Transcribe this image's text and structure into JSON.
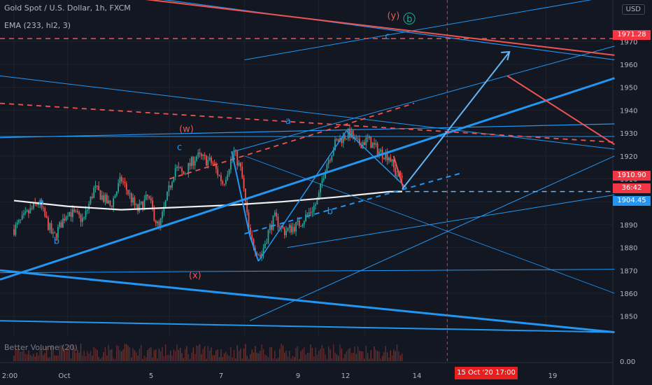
{
  "header": {
    "title": "Gold Spot / U.S. Dollar, 1h, FXCM",
    "indicator": "EMA (233, hl2, 3)",
    "volume_label": "Better Volume (20)",
    "currency": "USD"
  },
  "price_tags": {
    "target": "1971.28",
    "last": "1910.90",
    "countdown": "36:42",
    "ema": "1904.45"
  },
  "crosshair_time": "15 Oct '20  17:00",
  "wave_labels": [
    {
      "text": "a",
      "color": "#2196f3",
      "t": 2.3,
      "price": 1898.5
    },
    {
      "text": "b",
      "color": "#2196f3",
      "t": 3.7,
      "price": 1881.5
    },
    {
      "text": "c",
      "color": "#2196f3",
      "t": 15.2,
      "price": 1922.5
    },
    {
      "text": "(w)",
      "color": "#ef5350",
      "t": 15.4,
      "price": 1930.5
    },
    {
      "text": "(x)",
      "color": "#ef5350",
      "t": 16.3,
      "price": 1866.5
    },
    {
      "text": "a",
      "color": "#2196f3",
      "t": 25.3,
      "price": 1934.0
    },
    {
      "text": "b",
      "color": "#2196f3",
      "t": 29.2,
      "price": 1894.5
    },
    {
      "text": "c",
      "color": "#2196f3",
      "t": 34.6,
      "price": 1971.0
    },
    {
      "text": "(y)",
      "color": "#ef5350",
      "t": 34.8,
      "price": 1980.0
    },
    {
      "text": "b",
      "color": "#26a69a",
      "t": 36.6,
      "price": 1978.5
    }
  ],
  "chart_data": {
    "type": "candlestick",
    "title": "Gold Spot / U.S. Dollar, 1h, FXCM",
    "x_ticks": [
      "2:00",
      "Oct",
      "5",
      "7",
      "9",
      "12",
      "14",
      "15 Oct '20  17:00",
      "19"
    ],
    "y_ticks": [
      1850,
      1860,
      1870,
      1880,
      1890,
      1900,
      1910,
      1920,
      1930,
      1940,
      1950,
      1960,
      1970
    ],
    "ylim": [
      1843,
      1986
    ],
    "volume_tick": "0.00",
    "price_path": [
      [
        0,
        1888
      ],
      [
        1.5,
        1896
      ],
      [
        2.3,
        1900
      ],
      [
        3.7,
        1884
      ],
      [
        5,
        1896
      ],
      [
        6.5,
        1892
      ],
      [
        7.5,
        1906
      ],
      [
        9,
        1898
      ],
      [
        10,
        1910
      ],
      [
        11.5,
        1896
      ],
      [
        12.5,
        1902
      ],
      [
        13.5,
        1888
      ],
      [
        15,
        1915
      ],
      [
        15.8,
        1912
      ],
      [
        17,
        1920
      ],
      [
        18.5,
        1917
      ],
      [
        19.5,
        1908
      ],
      [
        20.5,
        1922
      ],
      [
        21.2,
        1913
      ],
      [
        22,
        1884
      ],
      [
        23,
        1876
      ],
      [
        23.8,
        1888
      ],
      [
        24.3,
        1893
      ],
      [
        25.2,
        1887
      ],
      [
        26.5,
        1890
      ],
      [
        27.5,
        1895
      ],
      [
        28.3,
        1900
      ],
      [
        29,
        1915
      ],
      [
        30,
        1926
      ],
      [
        31.3,
        1930
      ],
      [
        32,
        1925
      ],
      [
        33,
        1927
      ],
      [
        34,
        1922
      ],
      [
        35,
        1920
      ],
      [
        35.6,
        1912
      ],
      [
        36.2,
        1910.9
      ]
    ],
    "ema_233": [
      [
        0,
        1900.5
      ],
      [
        5,
        1898
      ],
      [
        10,
        1896.5
      ],
      [
        15,
        1897.5
      ],
      [
        20,
        1898.5
      ],
      [
        25,
        1900
      ],
      [
        30,
        1902
      ],
      [
        35,
        1904.4
      ],
      [
        36.2,
        1904.45
      ]
    ],
    "annotations": {
      "resistance_dashed": 1971.28,
      "current_level_dashed": 1904.45,
      "projection_arrow": {
        "from": [
          36.2,
          1905.5
        ],
        "to": [
          46.2,
          1965.5
        ]
      }
    }
  }
}
